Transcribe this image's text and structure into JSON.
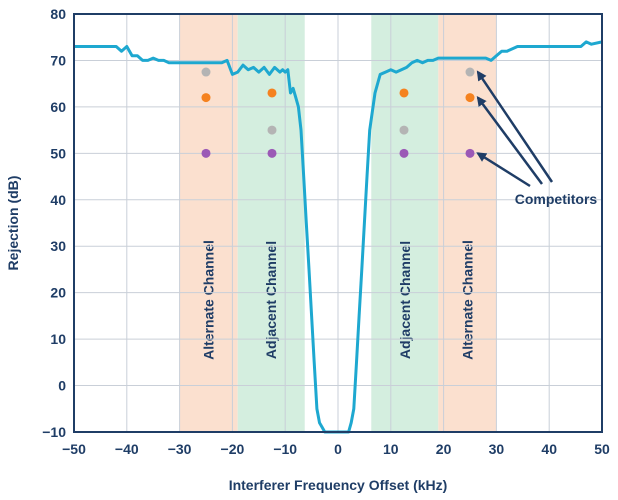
{
  "chart_data": {
    "type": "line",
    "xlabel": "Interferer Frequency Offset (kHz)",
    "ylabel": "Rejection (dB)",
    "xlim": [
      -50,
      50
    ],
    "ylim": [
      -10,
      80
    ],
    "xticks": [
      -50,
      -40,
      -30,
      -20,
      -10,
      0,
      10,
      20,
      30,
      40,
      50
    ],
    "yticks": [
      -10,
      0,
      10,
      20,
      30,
      40,
      50,
      60,
      70,
      80
    ],
    "grid": true,
    "bands": [
      {
        "label": "Alternate Channel",
        "x0": -30,
        "x1": -19,
        "color": "#fbe0cf"
      },
      {
        "label": "Adjacent Channel",
        "x0": -19,
        "x1": -6.3,
        "color": "#d4eedf"
      },
      {
        "label": "Adjacent Channel",
        "x0": 6.3,
        "x1": 19,
        "color": "#d4eedf"
      },
      {
        "label": "Alternate Channel",
        "x0": 19,
        "x1": 30,
        "color": "#fbe0cf"
      }
    ],
    "series": [
      {
        "color": "#1ea8d0",
        "x": [
          -50,
          -45,
          -42,
          -41,
          -40,
          -39,
          -38,
          -37,
          -36,
          -35,
          -34,
          -33,
          -32,
          -30,
          -25,
          -22,
          -21,
          -20,
          -19,
          -18,
          -17,
          -16,
          -15,
          -14,
          -13,
          -12,
          -11,
          -10.5,
          -10,
          -9.5,
          -9,
          -8.5,
          -8,
          -7.5,
          -7,
          -6.5,
          -6,
          -5.5,
          -5,
          -4.5,
          -4,
          -3.5,
          -3,
          -2.5,
          -2,
          -1,
          0,
          1,
          2,
          2.5,
          3,
          3.5,
          4,
          4.5,
          5,
          5.5,
          6,
          7,
          8,
          9,
          10,
          11,
          12,
          13,
          14,
          15,
          16,
          17,
          18,
          19,
          20,
          22,
          25,
          27,
          28,
          29,
          30,
          31,
          32,
          34,
          35,
          37,
          40,
          44,
          46,
          47,
          48,
          50
        ],
        "y": [
          73,
          73,
          73,
          72,
          73,
          71,
          71,
          70,
          70,
          70.5,
          70,
          70,
          69.5,
          69.5,
          69.5,
          69.5,
          70,
          67,
          67.5,
          69,
          68,
          68.5,
          67.5,
          68.5,
          67,
          68.5,
          67.5,
          68,
          67.5,
          68,
          63,
          64,
          62,
          60,
          55,
          45,
          35,
          25,
          15,
          5,
          -5,
          -8,
          -9,
          -10,
          -10,
          -10,
          -10,
          -10,
          -10,
          -8,
          -5,
          5,
          15,
          25,
          35,
          45,
          55,
          63,
          67,
          67.5,
          68,
          67.5,
          68,
          68.5,
          69.5,
          70,
          69.5,
          70,
          70,
          70.5,
          70.5,
          70.5,
          70.5,
          70.5,
          70.5,
          70,
          71,
          72,
          72,
          73,
          73,
          73,
          73,
          73,
          73,
          74,
          73.5,
          74
        ]
      }
    ],
    "competitor_points": [
      {
        "x": -25,
        "y": 67.5,
        "color": "#b4b4b4"
      },
      {
        "x": -25,
        "y": 62,
        "color": "#f5821f"
      },
      {
        "x": -25,
        "y": 50,
        "color": "#9b59b6"
      },
      {
        "x": -12.5,
        "y": 63,
        "color": "#f5821f"
      },
      {
        "x": -12.5,
        "y": 55,
        "color": "#b4b4b4"
      },
      {
        "x": -12.5,
        "y": 50,
        "color": "#9b59b6"
      },
      {
        "x": 12.5,
        "y": 63,
        "color": "#f5821f"
      },
      {
        "x": 12.5,
        "y": 55,
        "color": "#b4b4b4"
      },
      {
        "x": 12.5,
        "y": 50,
        "color": "#9b59b6"
      },
      {
        "x": 25,
        "y": 67.5,
        "color": "#b4b4b4"
      },
      {
        "x": 25,
        "y": 62,
        "color": "#f5821f"
      },
      {
        "x": 25,
        "y": 50,
        "color": "#9b59b6"
      }
    ],
    "annotation": {
      "text": "Competitors",
      "arrow_targets": [
        {
          "x": 26.5,
          "y": 67.5
        },
        {
          "x": 26.5,
          "y": 62
        },
        {
          "x": 26.5,
          "y": 50
        }
      ]
    }
  }
}
